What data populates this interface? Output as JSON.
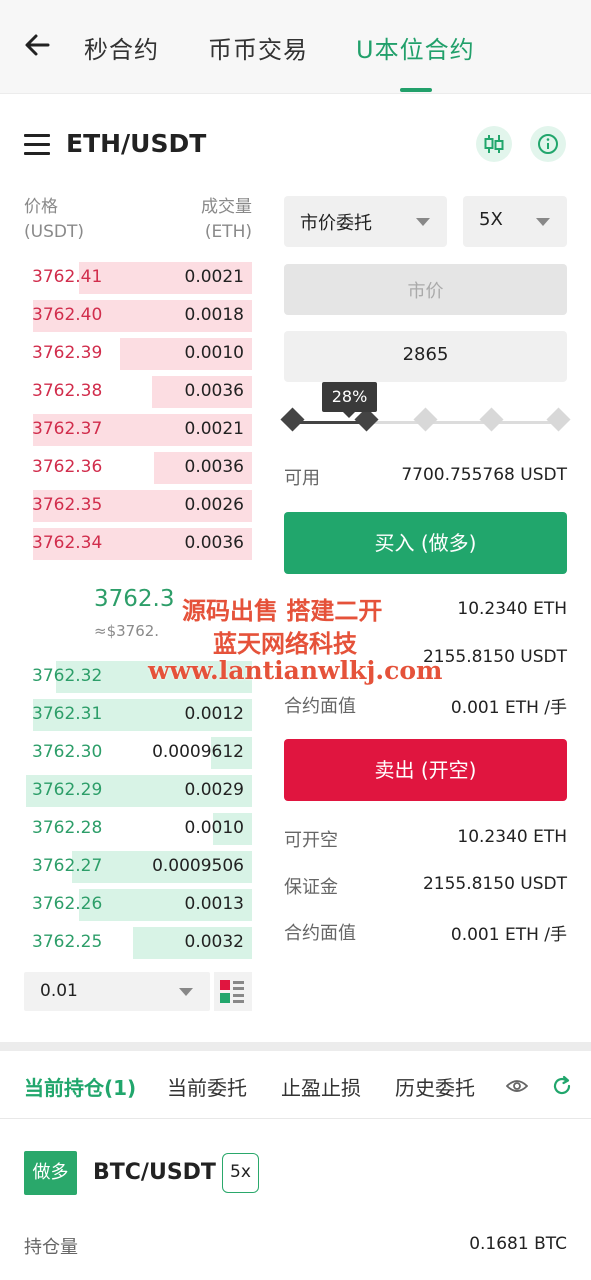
{
  "nav": {
    "tabs": [
      "秒合约",
      "币币交易",
      "U本位合约"
    ],
    "active_tab": "U本位合约"
  },
  "header": {
    "pair": "ETH/USDT"
  },
  "order_book": {
    "price_label": "价格",
    "price_unit": "(USDT)",
    "volume_label": "成交量",
    "volume_unit": "(ETH)",
    "asks": [
      {
        "price": "3762.41",
        "qty": "0.0021",
        "depth": 0.76
      },
      {
        "price": "3762.40",
        "qty": "0.0018",
        "depth": 0.96
      },
      {
        "price": "3762.39",
        "qty": "0.0010",
        "depth": 0.58
      },
      {
        "price": "3762.38",
        "qty": "0.0036",
        "depth": 0.44
      },
      {
        "price": "3762.37",
        "qty": "0.0021",
        "depth": 0.96
      },
      {
        "price": "3762.36",
        "qty": "0.0036",
        "depth": 0.43
      },
      {
        "price": "3762.35",
        "qty": "0.0026",
        "depth": 0.96
      },
      {
        "price": "3762.34",
        "qty": "0.0036",
        "depth": 0.96
      }
    ],
    "mid_price": "3762.3",
    "mid_fiat": "≈$3762.",
    "bids": [
      {
        "price": "3762.32",
        "qty": "",
        "depth": 0.86
      },
      {
        "price": "3762.31",
        "qty": "0.0012",
        "depth": 0.96
      },
      {
        "price": "3762.30",
        "qty": "0.0009612",
        "depth": 0.18
      },
      {
        "price": "3762.29",
        "qty": "0.0029",
        "depth": 0.99
      },
      {
        "price": "3762.28",
        "qty": "0.0010",
        "depth": 0.17
      },
      {
        "price": "3762.27",
        "qty": "0.0009506",
        "depth": 0.79
      },
      {
        "price": "3762.26",
        "qty": "0.0013",
        "depth": 0.76
      },
      {
        "price": "3762.25",
        "qty": "0.0032",
        "depth": 0.52
      }
    ],
    "depth_value": "0.01"
  },
  "trade": {
    "order_type": "市价委托",
    "leverage": "5X",
    "price_placeholder": "市价",
    "amount": "2865",
    "slider_percent": "28%",
    "slider_value": 0.28,
    "available_label": "可用",
    "available_value": "7700.755768 USDT",
    "buy_label": "买入 (做多)",
    "buy_info": [
      {
        "label": "",
        "value": "10.2340 ETH"
      },
      {
        "label": "",
        "value": "2155.8150 USDT"
      },
      {
        "label": "合约面值",
        "value": "0.001 ETH /手"
      }
    ],
    "sell_label": "卖出 (开空)",
    "sell_info": [
      {
        "label": "可开空",
        "value": "10.2340 ETH"
      },
      {
        "label": "保证金",
        "value": "2155.8150 USDT"
      },
      {
        "label": "合约面值",
        "value": "0.001 ETH /手"
      }
    ]
  },
  "watermark": {
    "line1": "源码出售 搭建二开",
    "line2": "蓝天网络科技",
    "line3": "www.lantianwlkj.com"
  },
  "bottom_tabs": {
    "items": [
      "当前持仓(1)",
      "当前委托",
      "止盈止损",
      "历史委托"
    ]
  },
  "position": {
    "side": "做多",
    "pair": "BTC/USDT",
    "leverage": "5x",
    "holding_label": "持仓量",
    "holding_value": "0.1681 BTC"
  },
  "colors": {
    "accent": "#22a06b",
    "buy": "#21a66c",
    "sell": "#e0153f",
    "ask_text": "#d12d4c",
    "bid_text": "#2d9e69"
  }
}
